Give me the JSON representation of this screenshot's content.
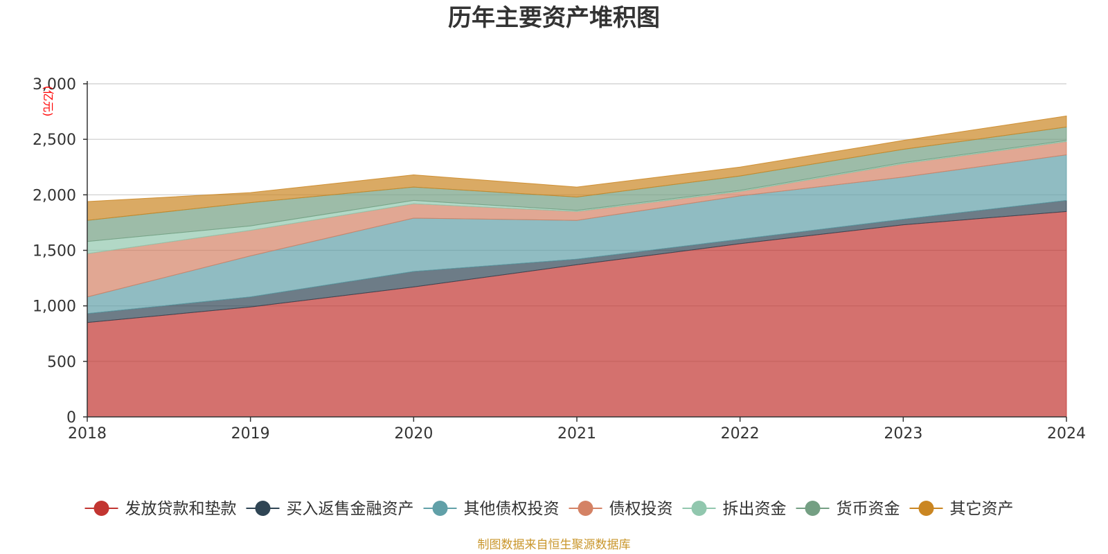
{
  "chart_data": {
    "type": "area",
    "title": "历年主要资产堆积图",
    "y_unit": "(亿元)",
    "x": [
      "2018",
      "2019",
      "2020",
      "2021",
      "2022",
      "2023",
      "2024"
    ],
    "ylim": [
      0,
      3000
    ],
    "yticks": [
      0,
      500,
      1000,
      1500,
      2000,
      2500,
      3000
    ],
    "ytick_labels": [
      "0",
      "500",
      "1,000",
      "1,500",
      "2,000",
      "2,500",
      "3,000"
    ],
    "stacked": true,
    "grid": true,
    "legend_position": "bottom",
    "series": [
      {
        "name": "发放贷款和垫款",
        "color": "#c23531",
        "values": [
          850,
          990,
          1170,
          1370,
          1560,
          1730,
          1850
        ]
      },
      {
        "name": "买入返售金融资产",
        "color": "#2f4554",
        "values": [
          80,
          90,
          140,
          50,
          40,
          50,
          100
        ]
      },
      {
        "name": "其他债权投资",
        "color": "#61a0a8",
        "values": [
          150,
          370,
          480,
          350,
          390,
          380,
          410
        ]
      },
      {
        "name": "债权投资",
        "color": "#d48265",
        "values": [
          390,
          230,
          130,
          80,
          40,
          120,
          120
        ]
      },
      {
        "name": "拆出资金",
        "color": "#91c7ae",
        "values": [
          110,
          40,
          30,
          10,
          10,
          10,
          10
        ]
      },
      {
        "name": "货币资金",
        "color": "#749f83",
        "values": [
          190,
          210,
          120,
          120,
          130,
          120,
          120
        ]
      },
      {
        "name": "其它资产",
        "color": "#ca8622",
        "values": [
          170,
          90,
          110,
          90,
          80,
          80,
          100
        ]
      }
    ]
  },
  "footer": {
    "source": "制图数据来自恒生聚源数据库"
  }
}
